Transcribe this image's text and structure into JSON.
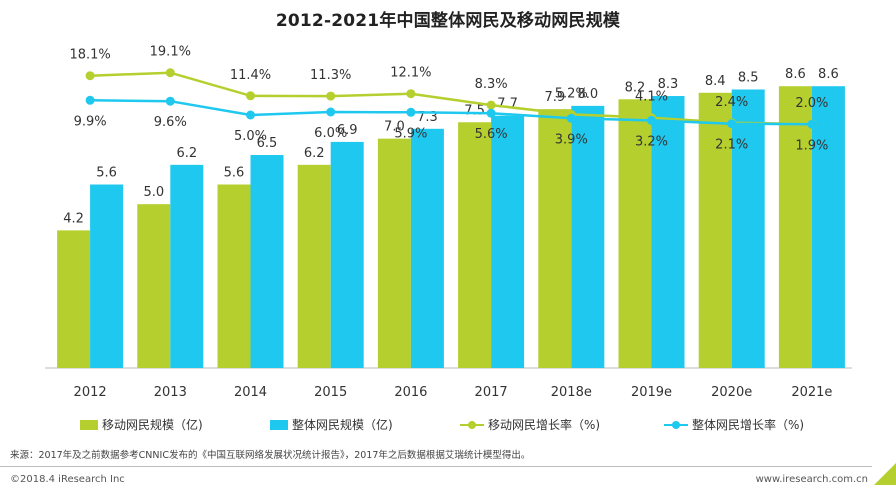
{
  "page": {
    "source_note": "来源：2017年及之前数据参考CNNIC发布的《中国互联网络发展状况统计报告》，2017年之后数据根据艾瑞统计模型得出。",
    "copyright": "©2018.4 iResearch Inc",
    "website": "www.iresearch.com.cn"
  },
  "chart_data": {
    "type": "bar",
    "title": "2012-2021年中国整体网民及移动网民规模",
    "categories": [
      "2012",
      "2013",
      "2014",
      "2015",
      "2016",
      "2017",
      "2018e",
      "2019e",
      "2020e",
      "2021e"
    ],
    "series": [
      {
        "name": "移动网民规模（亿)",
        "type": "bar",
        "color": "#b5cf2e",
        "values": [
          4.2,
          5.0,
          5.6,
          6.2,
          7.0,
          7.5,
          7.9,
          8.2,
          8.4,
          8.6
        ]
      },
      {
        "name": "整体网民规模（亿)",
        "type": "bar",
        "color": "#1ec8ee",
        "values": [
          5.6,
          6.2,
          6.5,
          6.9,
          7.3,
          7.7,
          8.0,
          8.3,
          8.5,
          8.6
        ]
      },
      {
        "name": "移动网民增长率（%)",
        "type": "line",
        "color": "#b5cf2e",
        "values": [
          18.1,
          19.1,
          11.4,
          11.3,
          12.1,
          8.3,
          5.2,
          4.1,
          2.4,
          2.0
        ],
        "labels": [
          "18.1%",
          "19.1%",
          "11.4%",
          "11.3%",
          "12.1%",
          "8.3%",
          "5.2%",
          "4.1%",
          "2.4%",
          "2.0%"
        ]
      },
      {
        "name": "整体网民增长率（%)",
        "type": "line",
        "color": "#1ec8ee",
        "values": [
          9.9,
          9.6,
          5.0,
          6.0,
          5.9,
          5.6,
          3.9,
          3.2,
          2.1,
          1.9
        ],
        "labels": [
          "9.9%",
          "9.6%",
          "5.0%",
          "6.0%",
          "5.9%",
          "5.6%",
          "3.9%",
          "3.2%",
          "2.1%",
          "1.9%"
        ]
      }
    ],
    "legend_position": "bottom",
    "grid": false
  }
}
